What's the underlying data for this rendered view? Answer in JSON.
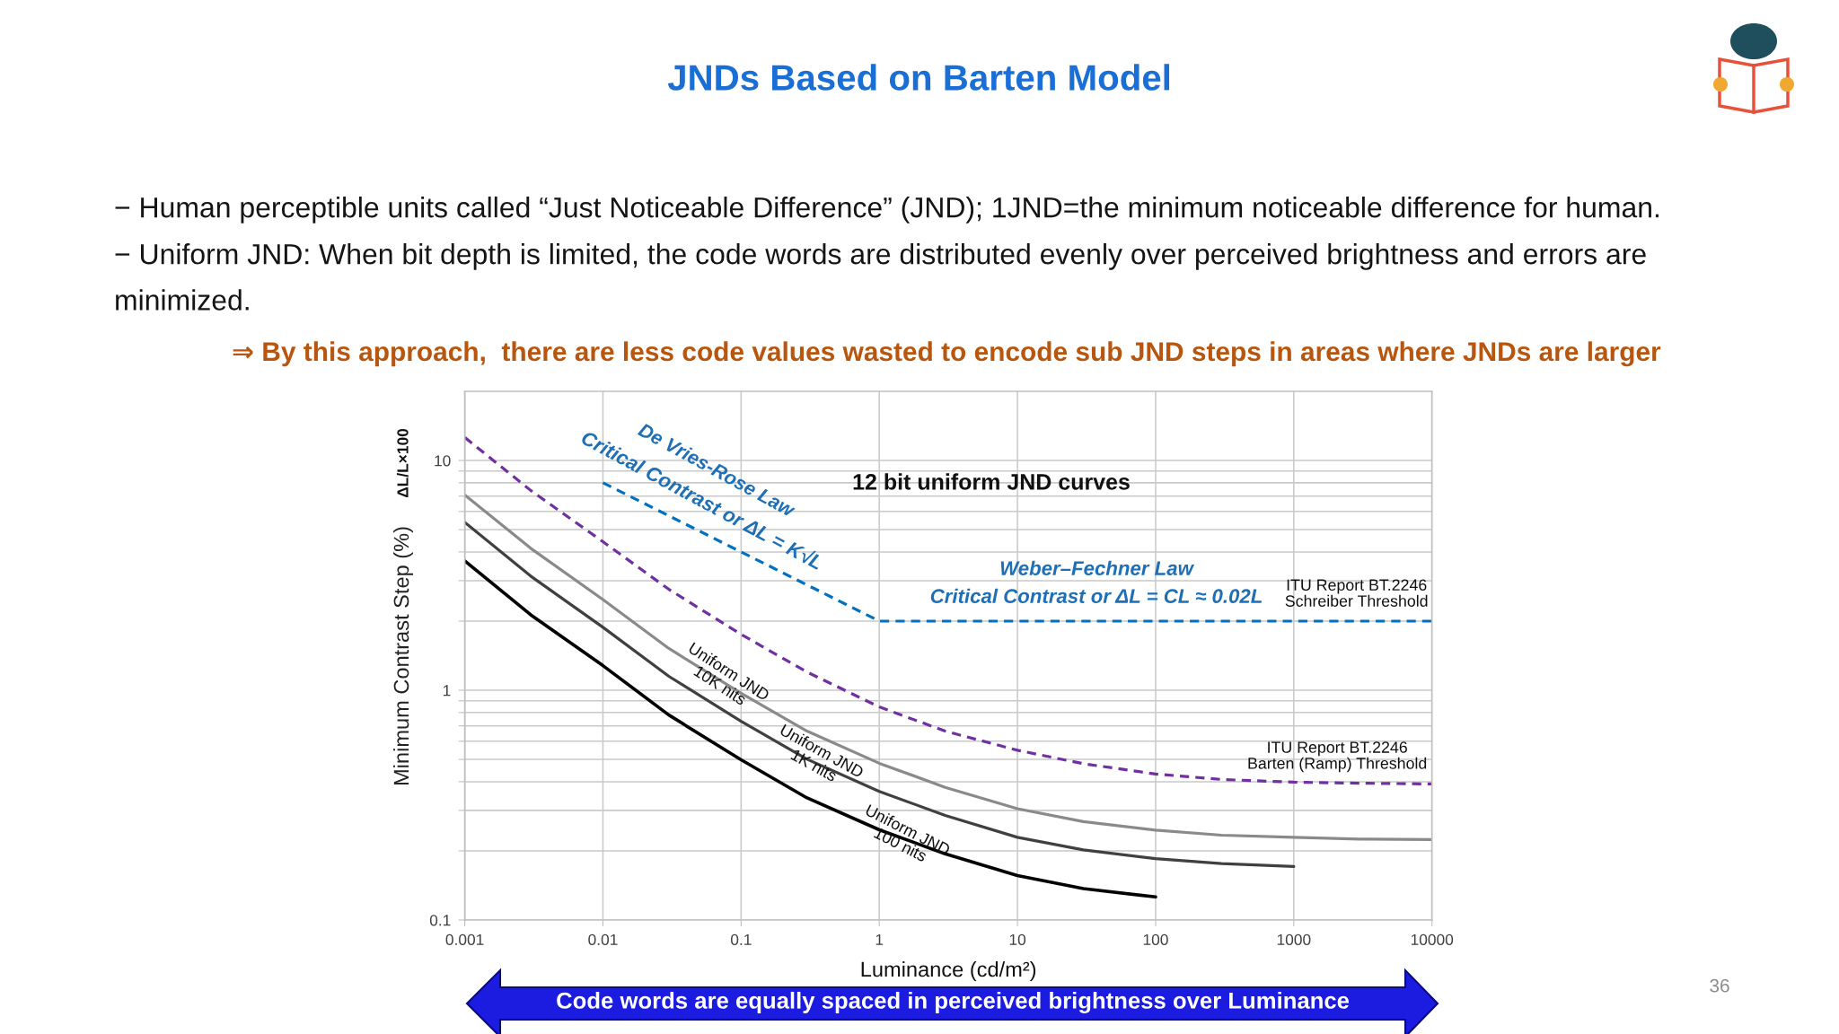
{
  "chart_data": {
    "type": "line",
    "title": "JNDs Based on Barten Model",
    "subtitle": "12 bit uniform JND curves",
    "xlabel": "Luminance (cd/m²)",
    "ylabel": "Minimum Contrast Step (%)",
    "annotations": [
      "− Human perceptible units called “Just Noticeable Difference” (JND); 1JND=the minimum noticeable difference for human.",
      "− Uniform JND: When bit depth is limited, the code words are distributed evenly over perceived brightness and errors are\nminimized.",
      "⇒ By this approach,  there are less code values wasted to encode sub JND steps in areas where JNDs are larger",
      "De Vries-Rose Law",
      "Critical Contrast or ΔL = K√L",
      "Weber–Fechner Law",
      "Critical Contrast or ΔL = CL ≈ 0.02L",
      "ΔL/L×100",
      "Code words are equally spaced in perceived brightness over Luminance",
      "36"
    ],
    "xlim": [
      0.001,
      10000
    ],
    "ylim": [
      0.1,
      20
    ],
    "xticks": [
      0.001,
      0.01,
      0.1,
      1,
      10,
      100,
      1000,
      10000
    ],
    "yticks": [
      0.1,
      {
        "value": 0.2,
        "label": null
      },
      {
        "value": 0.3,
        "label": null
      },
      {
        "value": 0.4,
        "label": null
      },
      {
        "value": 0.5,
        "label": null
      },
      {
        "value": 0.6,
        "label": null
      },
      {
        "value": 0.7,
        "label": null
      },
      {
        "value": 0.8,
        "label": null
      },
      {
        "value": 0.9,
        "label": null
      },
      1,
      {
        "value": 2,
        "label": null
      },
      {
        "value": 3,
        "label": null
      },
      {
        "value": 4,
        "label": null
      },
      {
        "value": 5,
        "label": null
      },
      {
        "value": 6,
        "label": null
      },
      {
        "value": 7,
        "label": null
      },
      {
        "value": 8,
        "label": null
      },
      {
        "value": 9,
        "label": null
      },
      10
    ],
    "log": "xy",
    "grid": true,
    "series": [
      {
        "name": "ITU Report BT.2246\nBarten (Ramp) Threshold",
        "color": "#7030a0",
        "line_style": "dashed",
        "x": [
          0.001,
          0.003,
          0.01,
          0.03,
          0.1,
          0.3,
          1,
          3,
          10,
          30,
          100,
          300,
          1000,
          3000,
          10000
        ],
        "values": [
          12.6,
          7.41,
          4.43,
          2.75,
          1.75,
          1.2,
          0.846,
          0.664,
          0.548,
          0.479,
          0.432,
          0.409,
          0.398,
          0.394,
          0.391
        ]
      },
      {
        "name": "ITU Report BT.2246\nSchreiber Threshold",
        "color": "#0070c0",
        "line_style": "dashed",
        "x": [
          0.01,
          1,
          10000
        ],
        "values": [
          8,
          2,
          2
        ]
      },
      {
        "name": "Uniform JND\n10K nits",
        "color": "#8a8a8a",
        "line_style": "solid",
        "x": [
          0.001,
          0.003,
          0.01,
          0.03,
          0.1,
          0.3,
          1,
          3,
          10,
          30,
          100,
          300,
          1000,
          3000,
          10000
        ],
        "values": [
          7.08,
          4.15,
          2.48,
          1.52,
          0.97,
          0.664,
          0.481,
          0.378,
          0.305,
          0.268,
          0.246,
          0.234,
          0.229,
          0.225,
          0.224
        ]
      },
      {
        "name": "Uniform JND\n1K nits",
        "color": "#404040",
        "line_style": "solid",
        "x": [
          0.001,
          0.003,
          0.01,
          0.03,
          0.1,
          0.3,
          1,
          3,
          10,
          30,
          100,
          300,
          1000
        ],
        "values": [
          5.38,
          3.14,
          1.88,
          1.15,
          0.733,
          0.501,
          0.363,
          0.285,
          0.229,
          0.202,
          0.185,
          0.176,
          0.171
        ]
      },
      {
        "name": "Uniform JND\n100 nits",
        "color": "#000000",
        "line_style": "solid",
        "x": [
          0.001,
          0.003,
          0.01,
          0.03,
          0.1,
          0.3,
          1,
          3,
          10,
          30,
          100
        ],
        "values": [
          3.66,
          2.13,
          1.28,
          0.78,
          0.498,
          0.34,
          0.247,
          0.194,
          0.156,
          0.137,
          0.126
        ]
      }
    ]
  }
}
